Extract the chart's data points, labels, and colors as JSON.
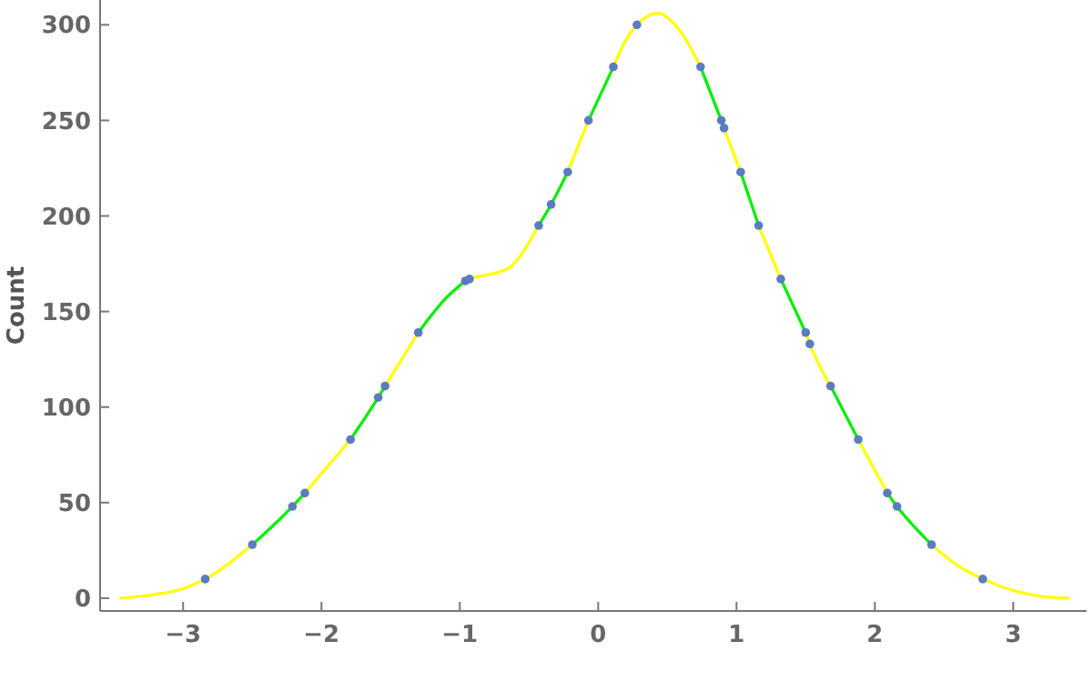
{
  "chart_data": {
    "type": "line",
    "ylabel": "Count",
    "xlim": [
      -3.6,
      3.53
    ],
    "ylim": [
      -6.7,
      313
    ],
    "xticks": [
      {
        "value": -3,
        "label": "−3"
      },
      {
        "value": -2,
        "label": "−2"
      },
      {
        "value": -1,
        "label": "−1"
      },
      0,
      1,
      2,
      3
    ],
    "yticks": [
      0,
      50,
      100,
      150,
      200,
      250,
      300
    ],
    "grid": false,
    "series": [
      {
        "color": "#ffff00",
        "line_style": "solid",
        "x": [
          -3.45,
          -3.2,
          -3.0,
          -2.84,
          -2.5,
          -2.3,
          -2.12,
          -1.79,
          -1.65,
          -1.54,
          -1.3,
          -1.1,
          -0.96,
          -0.93,
          -0.75,
          -0.64,
          -0.43,
          -0.3,
          -0.22,
          -0.07,
          0,
          0.11,
          0.2,
          0.28,
          0.43,
          0.6,
          0.74,
          0.8,
          0.89,
          0.91,
          1.03,
          1.1,
          1.16,
          1.32,
          1.4,
          1.5,
          1.53,
          1.68,
          1.8,
          1.88,
          2.09,
          2.2,
          2.41,
          2.6,
          2.78,
          3.0,
          3.2,
          3.4
        ],
        "values": [
          0,
          2,
          5,
          10,
          28,
          null,
          55,
          83,
          null,
          111,
          139,
          null,
          166,
          167,
          170,
          173,
          195,
          null,
          223,
          250,
          null,
          278,
          292,
          300,
          306,
          296,
          278,
          null,
          250,
          246,
          223,
          null,
          195,
          167,
          null,
          139,
          133,
          111,
          null,
          83,
          55,
          null,
          28,
          17,
          10,
          4,
          1,
          0
        ]
      },
      {
        "color": "#00ee00",
        "line_style": "solid",
        "x": [
          -2.5,
          -2.21,
          -2.12,
          -2.0,
          -1.79,
          -1.59,
          -1.54,
          -1.4,
          -1.3,
          -1.1,
          -0.96,
          -0.7,
          -0.43,
          -0.34,
          -0.22,
          -0.15,
          -0.07,
          0.11,
          0.4,
          0.74,
          0.89,
          0.95,
          1.03,
          1.16,
          1.25,
          1.32,
          1.5,
          1.6,
          1.68,
          1.88,
          2.0,
          2.09,
          2.16,
          2.41
        ],
        "values": [
          28,
          48,
          55,
          null,
          83,
          105,
          111,
          null,
          139,
          157,
          166,
          null,
          195,
          206,
          223,
          null,
          250,
          278,
          null,
          278,
          250,
          null,
          223,
          195,
          null,
          167,
          139,
          null,
          111,
          83,
          null,
          55,
          48,
          28
        ]
      },
      {
        "type": "scatter",
        "color": "#5b7cc0",
        "marker": "circle",
        "x": [
          -2.84,
          -2.5,
          -2.21,
          -2.12,
          -1.79,
          -1.59,
          -1.54,
          -1.3,
          -0.96,
          -0.93,
          -0.43,
          -0.34,
          -0.22,
          -0.07,
          0.11,
          0.28,
          0.74,
          0.89,
          0.91,
          1.03,
          1.16,
          1.32,
          1.5,
          1.53,
          1.68,
          1.88,
          2.09,
          2.16,
          2.41,
          2.78
        ],
        "values": [
          10,
          28,
          48,
          55,
          83,
          105,
          111,
          139,
          166,
          167,
          195,
          206,
          223,
          250,
          278,
          300,
          278,
          250,
          246,
          223,
          195,
          167,
          139,
          133,
          111,
          83,
          55,
          48,
          28,
          10
        ]
      }
    ]
  }
}
